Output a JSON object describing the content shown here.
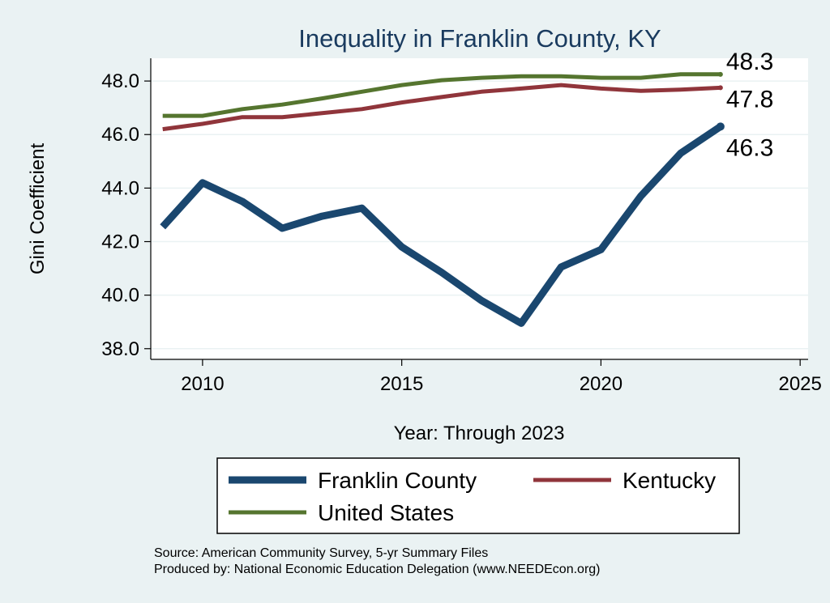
{
  "chart_data": {
    "type": "line",
    "title": "Inequality in Franklin County, KY",
    "xlabel": "Year: Through 2023",
    "ylabel": "Gini Coefficient",
    "xlim": [
      2008.7,
      2025.2
    ],
    "ylim": [
      37.6,
      48.85
    ],
    "xticks": [
      2010,
      2015,
      2020,
      2025
    ],
    "yticks": [
      38.0,
      40.0,
      42.0,
      44.0,
      46.0,
      48.0
    ],
    "ytick_labels": [
      "38.0",
      "40.0",
      "42.0",
      "44.0",
      "46.0",
      "48.0"
    ],
    "x": [
      2009,
      2010,
      2011,
      2012,
      2013,
      2014,
      2015,
      2016,
      2017,
      2018,
      2019,
      2020,
      2021,
      2022,
      2023
    ],
    "series": [
      {
        "name": "Franklin County",
        "color": "#1a476f",
        "end_label": "46.3",
        "values": [
          42.55,
          44.2,
          43.5,
          42.5,
          42.95,
          43.25,
          41.8,
          40.85,
          39.8,
          38.95,
          41.05,
          41.7,
          43.7,
          45.3,
          46.3
        ]
      },
      {
        "name": "Kentucky",
        "color": "#90353b",
        "end_label": "47.8",
        "values": [
          46.2,
          46.4,
          46.65,
          46.65,
          46.8,
          46.95,
          47.2,
          47.4,
          47.6,
          47.72,
          47.85,
          47.72,
          47.63,
          47.68,
          47.75
        ]
      },
      {
        "name": "United States",
        "color": "#55752f",
        "end_label": "48.3",
        "values": [
          46.7,
          46.7,
          46.95,
          47.12,
          47.35,
          47.6,
          47.85,
          48.03,
          48.12,
          48.18,
          48.18,
          48.12,
          48.12,
          48.25,
          48.25
        ]
      }
    ],
    "legend": {
      "position": "bottom",
      "entries": [
        "Franklin County",
        "Kentucky",
        "United States"
      ]
    },
    "grid": true
  },
  "source": {
    "line1": "Source: American Community Survey, 5-yr Summary Files",
    "line2": "Produced by: National Economic Education Delegation (www.NEEDEcon.org)"
  },
  "colors": {
    "background": "#eaf2f3",
    "plot_background": "#ffffff",
    "grid": "#eaf2f3",
    "title": "#1a3b5f"
  }
}
